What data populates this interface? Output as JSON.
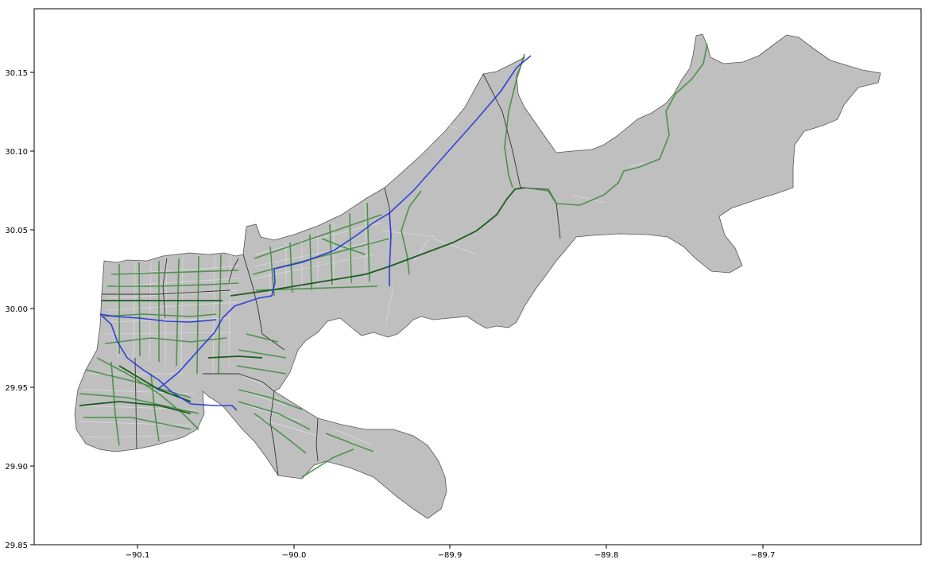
{
  "chart_data": {
    "type": "map",
    "title": "",
    "xlabel": "",
    "ylabel": "",
    "xlim": [
      -90.165,
      -89.6
    ],
    "ylim": [
      29.85,
      30.189
    ],
    "grid": false,
    "legend": "none",
    "x_ticks": [
      {
        "value": -90.1,
        "label": "−90.1"
      },
      {
        "value": -90.0,
        "label": "−90.0"
      },
      {
        "value": -89.9,
        "label": "−89.9"
      },
      {
        "value": -89.8,
        "label": "−89.8"
      },
      {
        "value": -89.7,
        "label": "−89.7"
      }
    ],
    "y_ticks": [
      {
        "value": 29.85,
        "label": "29.85"
      },
      {
        "value": 29.9,
        "label": "29.90"
      },
      {
        "value": 29.95,
        "label": "29.95"
      },
      {
        "value": 30.0,
        "label": "30.00"
      },
      {
        "value": 30.05,
        "label": "30.05"
      },
      {
        "value": 30.1,
        "label": "30.10"
      },
      {
        "value": 30.15,
        "label": "30.15"
      }
    ],
    "colors": {
      "land_fill": "#bfbfbf",
      "boundary": "#333333",
      "minor_streets": "#e0e0e0",
      "green_routes": "#2e7d32",
      "dark_green_routes": "#1b5e20",
      "blue_routes": "#2233dd"
    },
    "layers": [
      {
        "name": "land",
        "kind": "polygon",
        "color": "#bfbfbf"
      },
      {
        "name": "district-boundaries",
        "kind": "line",
        "color": "#333333"
      },
      {
        "name": "minor-streets",
        "kind": "line",
        "color": "#e0e0e0"
      },
      {
        "name": "green-routes",
        "kind": "line",
        "color": "#2e7d32"
      },
      {
        "name": "blue-routes",
        "kind": "line",
        "color": "#2233dd"
      }
    ]
  }
}
